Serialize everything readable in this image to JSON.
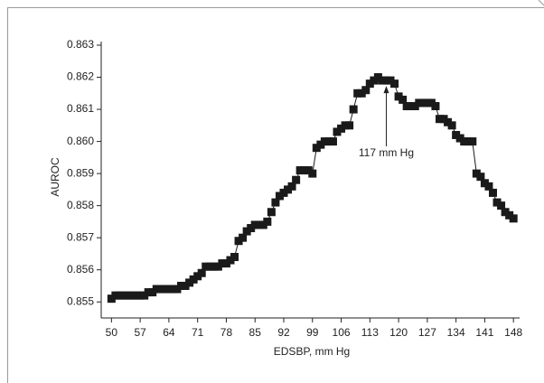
{
  "chart_data": {
    "type": "line",
    "x_label": "EDSBP, mm Hg",
    "y_label": "AUROC",
    "color": "#1a1a1a",
    "marker": "square",
    "annotation": {
      "text": "117 mm Hg",
      "x": 117
    },
    "x": [
      50,
      51,
      52,
      53,
      54,
      55,
      56,
      57,
      58,
      59,
      60,
      61,
      62,
      63,
      64,
      65,
      66,
      67,
      68,
      69,
      70,
      71,
      72,
      73,
      74,
      75,
      76,
      77,
      78,
      79,
      80,
      81,
      82,
      83,
      84,
      85,
      86,
      87,
      88,
      89,
      90,
      91,
      92,
      93,
      94,
      95,
      96,
      97,
      98,
      99,
      100,
      101,
      102,
      103,
      104,
      105,
      106,
      107,
      108,
      109,
      110,
      111,
      112,
      113,
      114,
      115,
      116,
      117,
      118,
      119,
      120,
      121,
      122,
      123,
      124,
      125,
      126,
      127,
      128,
      129,
      130,
      131,
      132,
      133,
      134,
      135,
      136,
      137,
      138,
      139,
      140,
      141,
      142,
      143,
      144,
      145,
      146,
      147,
      148
    ],
    "values": [
      0.8551,
      0.8552,
      0.8552,
      0.8552,
      0.8552,
      0.8552,
      0.8552,
      0.8552,
      0.8552,
      0.8553,
      0.8553,
      0.8554,
      0.8554,
      0.8554,
      0.8554,
      0.8554,
      0.8554,
      0.8555,
      0.8555,
      0.8556,
      0.8557,
      0.8558,
      0.8559,
      0.8561,
      0.8561,
      0.8561,
      0.8561,
      0.8562,
      0.8562,
      0.8563,
      0.8564,
      0.8569,
      0.857,
      0.8572,
      0.8573,
      0.8574,
      0.8574,
      0.8574,
      0.8575,
      0.8578,
      0.8581,
      0.8583,
      0.8584,
      0.8585,
      0.8586,
      0.8588,
      0.8591,
      0.8591,
      0.8591,
      0.859,
      0.8598,
      0.8599,
      0.86,
      0.86,
      0.86,
      0.8603,
      0.8604,
      0.8605,
      0.8605,
      0.861,
      0.8615,
      0.8615,
      0.8616,
      0.8618,
      0.8619,
      0.862,
      0.8619,
      0.8619,
      0.8619,
      0.8618,
      0.8614,
      0.8613,
      0.8611,
      0.8611,
      0.8611,
      0.8612,
      0.8612,
      0.8612,
      0.8612,
      0.8611,
      0.8607,
      0.8607,
      0.8606,
      0.8605,
      0.8602,
      0.8601,
      0.86,
      0.86,
      0.86,
      0.859,
      0.8589,
      0.8587,
      0.8586,
      0.8584,
      0.8581,
      0.858,
      0.8578,
      0.8577,
      0.8576
    ],
    "xlim": [
      47.5,
      149.5
    ],
    "xticks": [
      50,
      57,
      64,
      71,
      78,
      85,
      92,
      99,
      106,
      113,
      120,
      127,
      134,
      141,
      148
    ],
    "ylim": [
      0.8545,
      0.863
    ],
    "yticks": [
      0.855,
      0.856,
      0.857,
      0.858,
      0.859,
      {
        "value": 0.86,
        "label": "0.860"
      },
      0.861,
      0.862,
      0.863
    ]
  }
}
